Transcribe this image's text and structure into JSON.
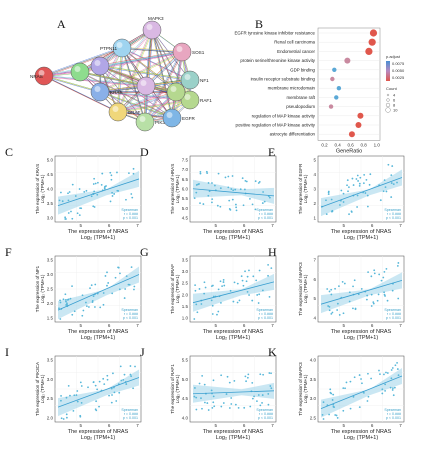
{
  "panel_labels": {
    "A": "A",
    "B": "B"
  },
  "network": {
    "nodes": [
      "MAPK3",
      "PTPN11",
      "SOS1",
      "NRAS",
      "NF1",
      "KRAS",
      "RAF1",
      "BRAF",
      "PIK3CA",
      "EGFR"
    ],
    "node_colors": {
      "MAPK3": "#d9b8e3",
      "PTPN11": "#9fd4f0",
      "SOS1": "#e8a6c0",
      "NRAS": "#e05656",
      "NF1": "#9bd1c9",
      "KRAS": "#8ab0e8",
      "RAF1": "#b5d88f",
      "BRAF": "#f0d77a",
      "PIK3CA": "#b8e0a6",
      "EGFR": "#7fb6e6",
      "X1": "#b1a6e6",
      "X2": "#8edc8e"
    }
  },
  "go": {
    "terms": [
      "EGFR tyrosine kinase inhibitor resistance",
      "Renal cell carcinoma",
      "Endometrial cancer",
      "protein serine/threonine kinase activity",
      "GDP binding",
      "insulin receptor substrate binding",
      "membrane microdomain",
      "membrane raft",
      "pseudopodium",
      "regulation of MAP kinase activity",
      "positive regulation of MAP kinase activity",
      "astrocyte differentiation"
    ],
    "xlabel": "GeneRatio",
    "xticks": [
      "0.2",
      "0.4",
      "0.6",
      "0.8",
      "1.0"
    ],
    "legend_title": "p.adjust",
    "legend_values": [
      "0.0075",
      "0.0050",
      "0.0025"
    ],
    "count_title": "Count",
    "count_values": [
      "4",
      "6",
      "8",
      "10"
    ],
    "chart_data": {
      "type": "scatter",
      "x": [
        0.95,
        0.93,
        0.88,
        0.55,
        0.35,
        0.32,
        0.42,
        0.38,
        0.3,
        0.75,
        0.72,
        0.62
      ],
      "xlim": [
        0.1,
        1.05
      ]
    }
  },
  "scatter_panels": [
    {
      "id": "C",
      "ylabel": "The expression of KRAS",
      "ylabel2": "Log₂ (TPM+1)",
      "yticks": [
        "3.0",
        "3.5",
        "4.0",
        "4.5",
        "5.0"
      ]
    },
    {
      "id": "D",
      "ylabel": "The expression of HRAS",
      "ylabel2": "Log₂ (TPM+1)",
      "yticks": [
        "4.5",
        "5.0",
        "5.5",
        "6.0",
        "6.5",
        "7.0",
        "7.5"
      ]
    },
    {
      "id": "E",
      "ylabel": "The expression of EGFR",
      "ylabel2": "Log₂ (TPM+1)",
      "yticks": [
        "1",
        "2",
        "3",
        "4",
        "5"
      ]
    },
    {
      "id": "F",
      "ylabel": "The expression of NF1",
      "ylabel2": "Log₂ (TPM+1)",
      "yticks": [
        "1.5",
        "2.0",
        "2.5",
        "3.0",
        "3.5"
      ]
    },
    {
      "id": "G",
      "ylabel": "The expression of BRAF",
      "ylabel2": "Log₂ (TPM+1)",
      "yticks": [
        "1.0",
        "1.5",
        "2.0",
        "2.5",
        "3.0",
        "3.5"
      ]
    },
    {
      "id": "H",
      "ylabel": "The expression of MAPK3",
      "ylabel2": "Log₂ (TPM+1)",
      "yticks": [
        "4",
        "5",
        "6",
        "7"
      ]
    },
    {
      "id": "I",
      "ylabel": "The expression of PIK3CA",
      "ylabel2": "Log₂ (TPM+1)",
      "yticks": [
        "2.0",
        "2.5",
        "3.0",
        "3.5"
      ]
    },
    {
      "id": "J",
      "ylabel": "The expression of RAF1",
      "ylabel2": "Log₂ (TPM+1)",
      "yticks": [
        "4.0",
        "4.5",
        "5.0",
        "5.5"
      ]
    },
    {
      "id": "K",
      "ylabel": "The expression of MAPK3",
      "ylabel2": "Log₂ (TPM+1)",
      "yticks": [
        "2.5",
        "3.0",
        "3.5",
        "4.0"
      ]
    }
  ],
  "scatter_common": {
    "xlabel": "The expression of NRAS",
    "xlabel2": "Log₂ (TPM+1)",
    "xticks": [
      "5",
      "6",
      "7"
    ],
    "legend": [
      "Spearman",
      "r = 0.###",
      "p < 0.001"
    ]
  }
}
